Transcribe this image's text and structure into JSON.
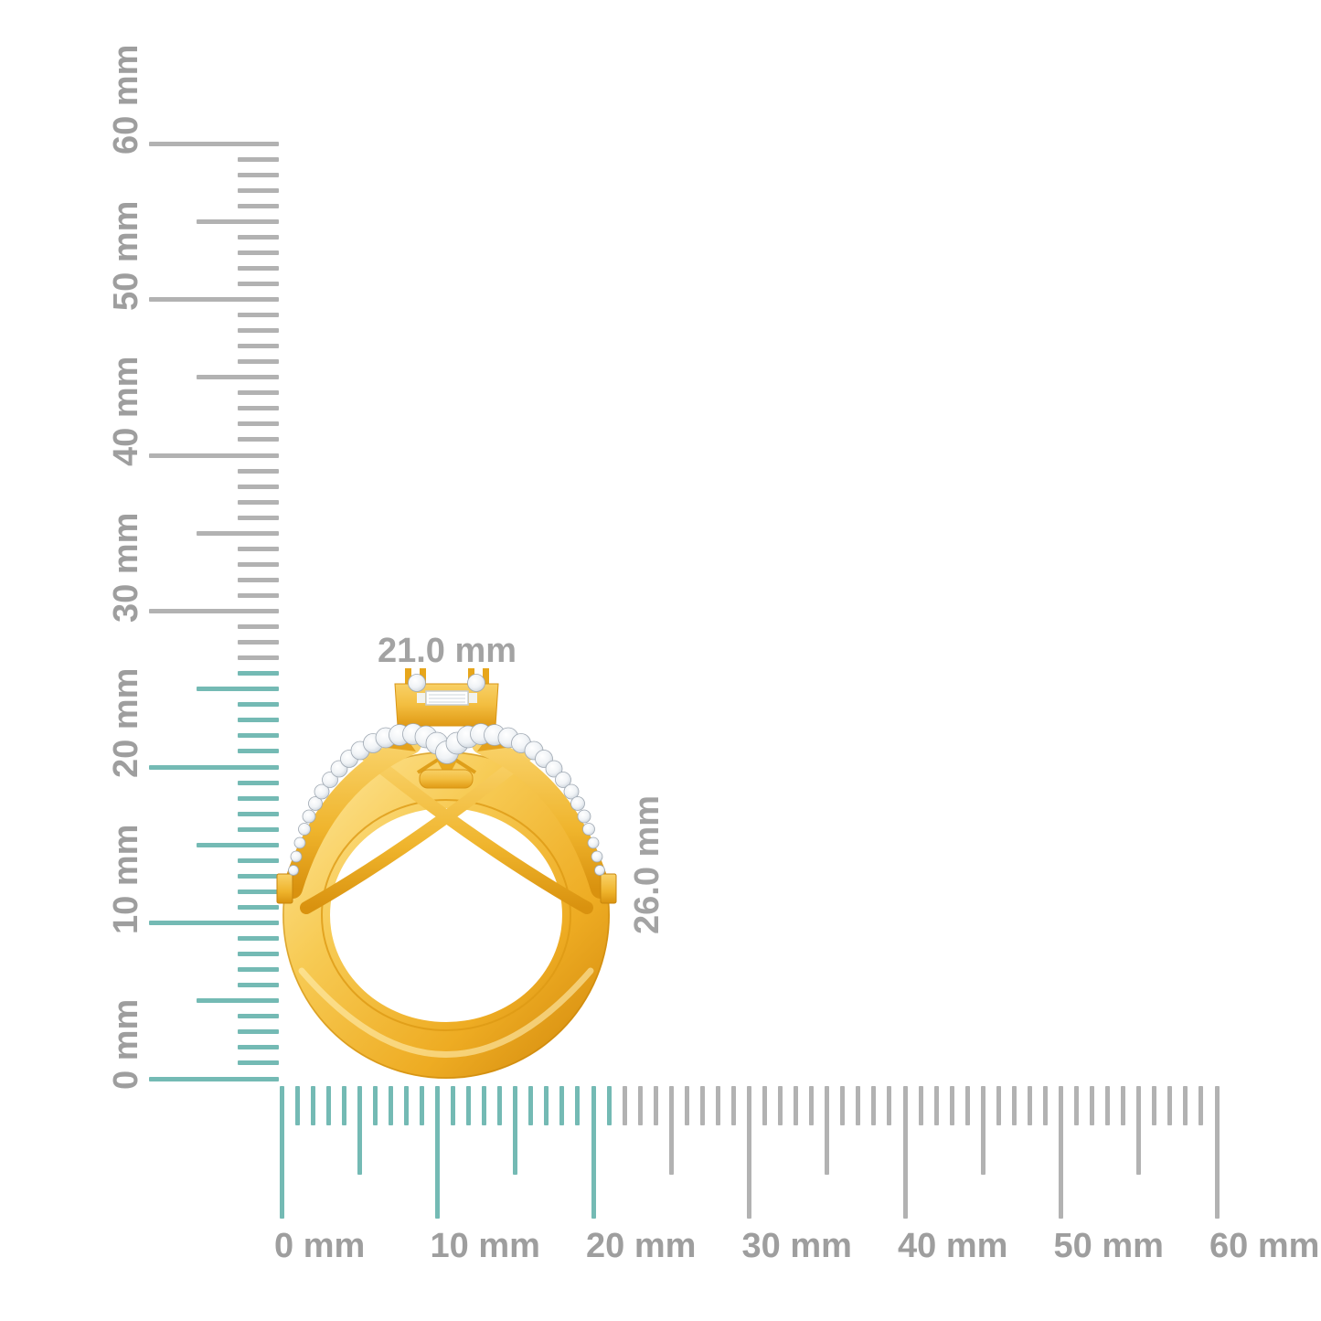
{
  "page": {
    "background_color": "#FFFFFF"
  },
  "figure": {
    "name": "gold-diamond-ring-side-view"
  },
  "annotations": {
    "width_label": "21.0 mm",
    "height_label": "26.0 mm"
  },
  "rulers": {
    "unit": "mm",
    "vertical": {
      "min": 0,
      "max": 60,
      "tick_step": 1,
      "half_tick_step": 5,
      "major_tick_step": 10,
      "highlight_min": 0,
      "highlight_max": 26,
      "labels": [
        "0 mm",
        "10 mm",
        "20 mm",
        "30 mm",
        "40 mm",
        "50 mm",
        "60 mm"
      ]
    },
    "horizontal": {
      "min": 0,
      "max": 60,
      "tick_step": 1,
      "half_tick_step": 5,
      "major_tick_step": 10,
      "highlight_min": 0,
      "highlight_max": 21,
      "labels": [
        "0 mm",
        "10 mm",
        "20 mm",
        "30 mm",
        "40 mm",
        "50 mm",
        "60 mm"
      ]
    }
  },
  "colors": {
    "teal": "#74BAB4",
    "gray": "#B2B2B2",
    "rlabel": "#9E9E9E",
    "dlabel": "#A3A3A3",
    "page": "#FFFFFF",
    "gold": "#F2BC3F",
    "diamond": "#FFFFFF"
  }
}
